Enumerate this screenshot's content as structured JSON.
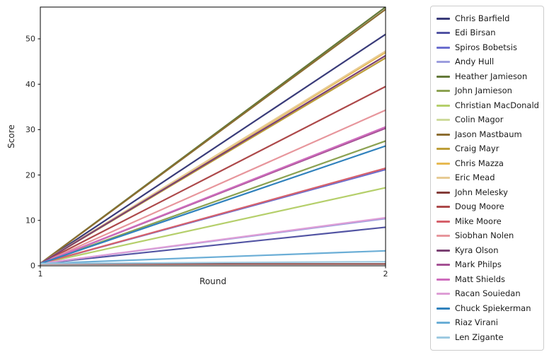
{
  "figure": {
    "xlabel": "Round",
    "ylabel": "Score",
    "background": "#ffffff",
    "frame_color": "#000000",
    "tick_color": "#262626"
  },
  "chart_data": {
    "type": "line",
    "title": "",
    "xlabel": "Round",
    "ylabel": "Score",
    "x": [
      1,
      2
    ],
    "x_ticks": [
      1,
      2
    ],
    "y_ticks": [
      0,
      10,
      20,
      30,
      40,
      50
    ],
    "xlim": [
      1,
      2
    ],
    "ylim": [
      0,
      57
    ],
    "grid": false,
    "legend_position": "outside-right",
    "series": [
      {
        "name": "Chris Barfield",
        "color": "#393b79",
        "values": [
          0.5,
          51.0
        ]
      },
      {
        "name": "Edi Birsan",
        "color": "#5254a3",
        "values": [
          0.5,
          8.5
        ]
      },
      {
        "name": "Spiros Bobetsis",
        "color": "#6b6ecf",
        "values": [
          0.5,
          21.2
        ]
      },
      {
        "name": "Andy Hull",
        "color": "#9c9ede",
        "values": [
          0.5,
          10.4
        ]
      },
      {
        "name": "Heather Jamieson",
        "color": "#637939",
        "values": [
          0.5,
          57.0
        ]
      },
      {
        "name": "John Jamieson",
        "color": "#8ca252",
        "values": [
          0.5,
          27.5
        ]
      },
      {
        "name": "Christian MacDonald",
        "color": "#b5cf6b",
        "values": [
          0.5,
          17.2
        ]
      },
      {
        "name": "Colin Magor",
        "color": "#cedb9c",
        "values": [
          0.5,
          47.2
        ]
      },
      {
        "name": "Jason Mastbaum",
        "color": "#8c6d31",
        "values": [
          0.5,
          56.5
        ]
      },
      {
        "name": "Craig Mayr",
        "color": "#bd9e39",
        "values": [
          0.5,
          45.8
        ]
      },
      {
        "name": "Chris Mazza",
        "color": "#e7ba52",
        "values": [
          0.5,
          47.0
        ]
      },
      {
        "name": "Eric Mead",
        "color": "#e7cb94",
        "values": [
          0.5,
          47.3
        ]
      },
      {
        "name": "John Melesky",
        "color": "#843c39",
        "values": [
          0.4,
          0.4
        ]
      },
      {
        "name": "Doug Moore",
        "color": "#ad494a",
        "values": [
          0.5,
          39.5
        ]
      },
      {
        "name": "Mike Moore",
        "color": "#d6616b",
        "values": [
          0.5,
          21.5
        ]
      },
      {
        "name": "Siobhan Nolen",
        "color": "#e7969c",
        "values": [
          0.5,
          34.3
        ]
      },
      {
        "name": "Kyra Olson",
        "color": "#7b4173",
        "values": [
          0.5,
          46.3
        ]
      },
      {
        "name": "Mark Philps",
        "color": "#a55194",
        "values": [
          0.5,
          30.3
        ]
      },
      {
        "name": "Matt Shields",
        "color": "#ce6dbd",
        "values": [
          0.5,
          30.6
        ]
      },
      {
        "name": "Racan Souiedan",
        "color": "#de9ed6",
        "values": [
          0.5,
          10.6
        ]
      },
      {
        "name": "Chuck Spiekerman",
        "color": "#3182bd",
        "values": [
          0.5,
          26.4
        ]
      },
      {
        "name": "Riaz Virani",
        "color": "#6baed6",
        "values": [
          0.5,
          3.3
        ]
      },
      {
        "name": "Len Zigante",
        "color": "#9ecae1",
        "values": [
          0.5,
          0.9
        ]
      }
    ]
  }
}
